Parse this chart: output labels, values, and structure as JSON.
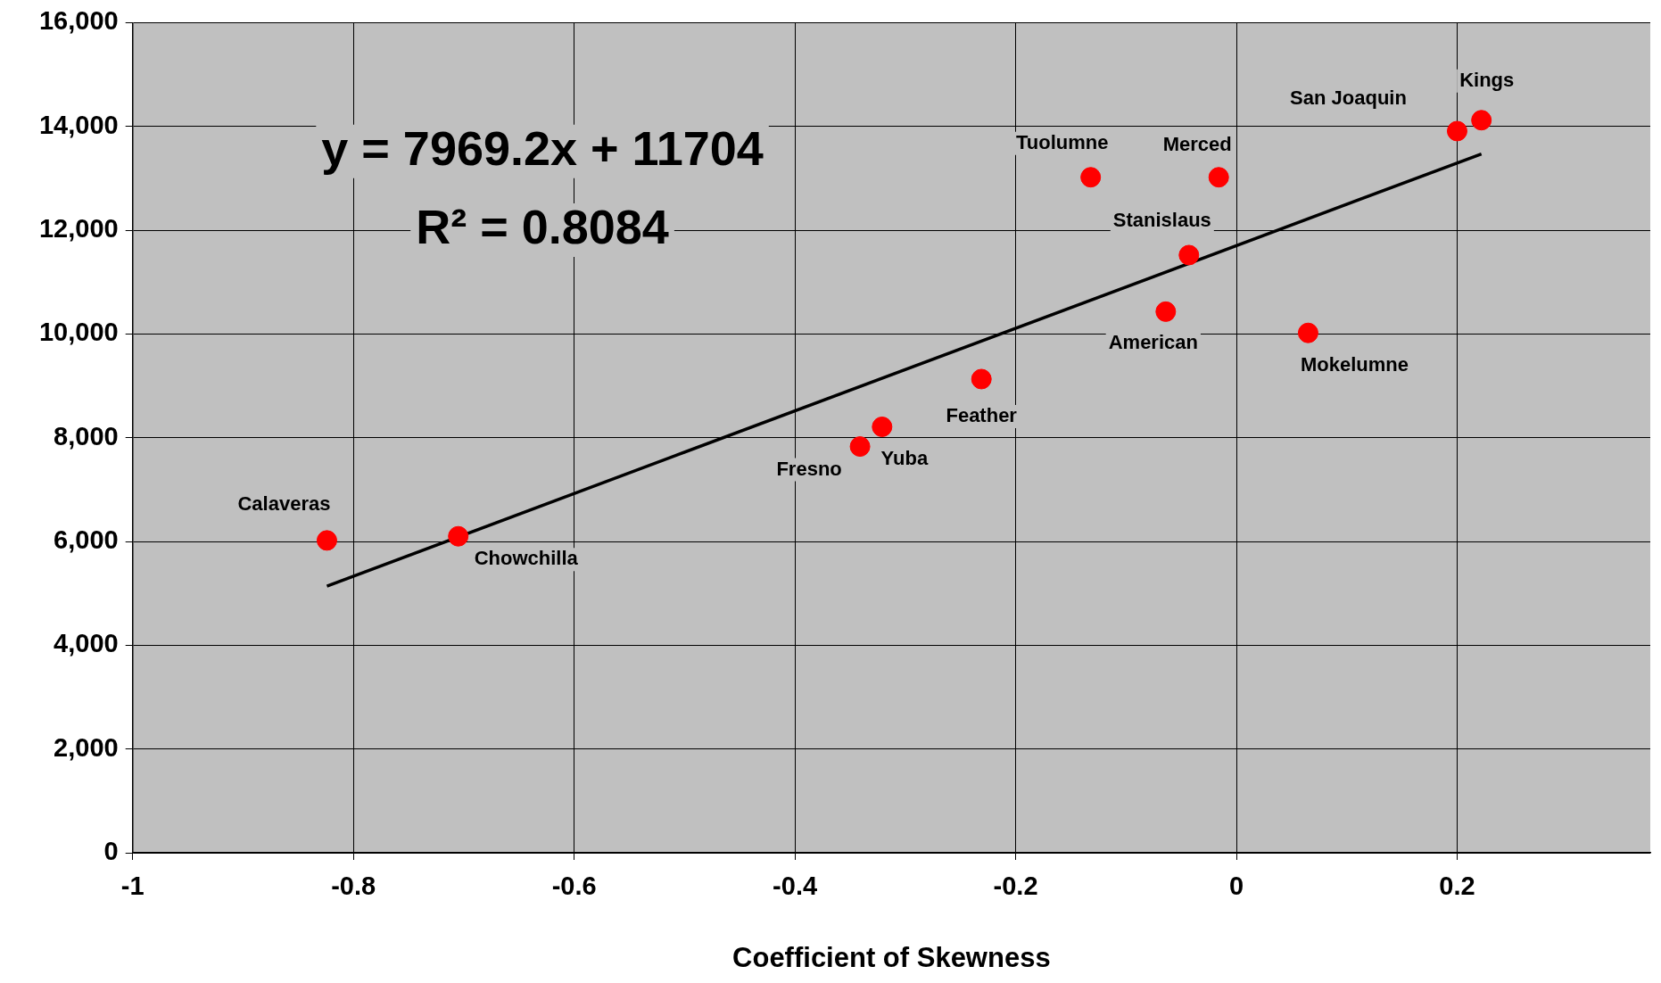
{
  "chart_data": {
    "type": "scatter",
    "xlabel": "Coefficient of Skewness",
    "xlim": [
      -1,
      0.375
    ],
    "xticks": [
      -1,
      -0.8,
      -0.6,
      -0.4,
      -0.2,
      0,
      0.2
    ],
    "ylim": [
      0,
      16000
    ],
    "yticks": [
      0,
      {
        "value": 2000,
        "label": "2,000"
      },
      {
        "value": 4000,
        "label": "4,000"
      },
      {
        "value": 6000,
        "label": "6,000"
      },
      {
        "value": 8000,
        "label": "8,000"
      },
      {
        "value": 10000,
        "label": "10,000"
      },
      {
        "value": 12000,
        "label": "12,000"
      },
      {
        "value": 14000,
        "label": "14,000"
      },
      {
        "value": 16000,
        "label": "16,000"
      }
    ],
    "grid": true,
    "legend": false,
    "series": [
      {
        "type": "scatter",
        "marker": "circle",
        "color": "#ff0000",
        "x": [
          -0.824,
          -0.705,
          -0.341,
          -0.321,
          -0.231,
          -0.132,
          -0.016,
          -0.043,
          -0.064,
          0.065,
          0.2,
          0.222
        ],
        "values": [
          6020,
          6100,
          7830,
          8210,
          9130,
          13020,
          13020,
          11520,
          10430,
          10020,
          13910,
          14120
        ]
      },
      {
        "type": "line",
        "marker": "none",
        "color": "#000000",
        "x": [
          -0.824,
          0.222
        ],
        "values": [
          5140,
          13470
        ]
      }
    ],
    "annotations": [
      "y = 7969.2x + 11704",
      "R² = 0.8084",
      {
        "text": "Calaveras",
        "x": -0.824,
        "y": 6020
      },
      {
        "text": "Chowchilla",
        "x": -0.705,
        "y": 6100
      },
      {
        "text": "Fresno",
        "x": -0.341,
        "y": 7830
      },
      {
        "text": "Yuba",
        "x": -0.321,
        "y": 8210
      },
      {
        "text": "Feather",
        "x": -0.231,
        "y": 9130
      },
      {
        "text": "Tuolumne",
        "x": -0.132,
        "y": 13020
      },
      {
        "text": "Merced",
        "x": -0.016,
        "y": 13020
      },
      {
        "text": "Stanislaus",
        "x": -0.043,
        "y": 11520
      },
      {
        "text": "American",
        "x": -0.064,
        "y": 10430
      },
      {
        "text": "Mokelumne",
        "x": 0.065,
        "y": 10020
      },
      {
        "text": "San Joaquin",
        "x": 0.2,
        "y": 13910
      },
      {
        "text": "Kings",
        "x": 0.222,
        "y": 14120
      }
    ]
  }
}
